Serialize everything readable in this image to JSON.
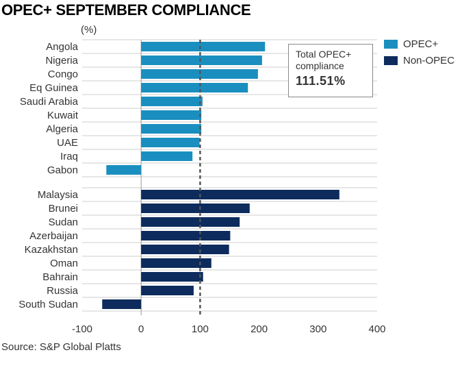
{
  "title": "OPEC+ SEPTEMBER COMPLIANCE",
  "source": "Source: S&P Global Platts",
  "annotation": {
    "line1": "Total OPEC+",
    "line2": "compliance",
    "value": "111.51%"
  },
  "colors": {
    "opec": "#1a8fbf",
    "non_opec": "#0d2b5c",
    "reference_line": "#555555",
    "grid": "#cccccc"
  },
  "chart_data": {
    "type": "bar",
    "orientation": "horizontal",
    "unit_label": "(%)",
    "xlim": [
      -100,
      400
    ],
    "xticks": [
      "-100",
      "0",
      "100",
      "200",
      "300",
      "400"
    ],
    "reference_line": 100,
    "grid": true,
    "legend_position": "top-right",
    "series": [
      {
        "name": "OPEC+",
        "categories": [
          "Angola",
          "Nigeria",
          "Congo",
          "Eq Guinea",
          "Saudi Arabia",
          "Kuwait",
          "Algeria",
          "UAE",
          "Iraq",
          "Gabon"
        ],
        "values": [
          210,
          205,
          198,
          181,
          104,
          102,
          102,
          99,
          87,
          -59
        ]
      },
      {
        "name": "Non-OPEC",
        "categories": [
          "Malaysia",
          "Brunei",
          "Sudan",
          "Azerbaijan",
          "Kazakhstan",
          "Oman",
          "Bahrain",
          "Russia",
          "South Sudan"
        ],
        "values": [
          336,
          184,
          167,
          151,
          149,
          119,
          105,
          89,
          -66
        ]
      }
    ]
  }
}
